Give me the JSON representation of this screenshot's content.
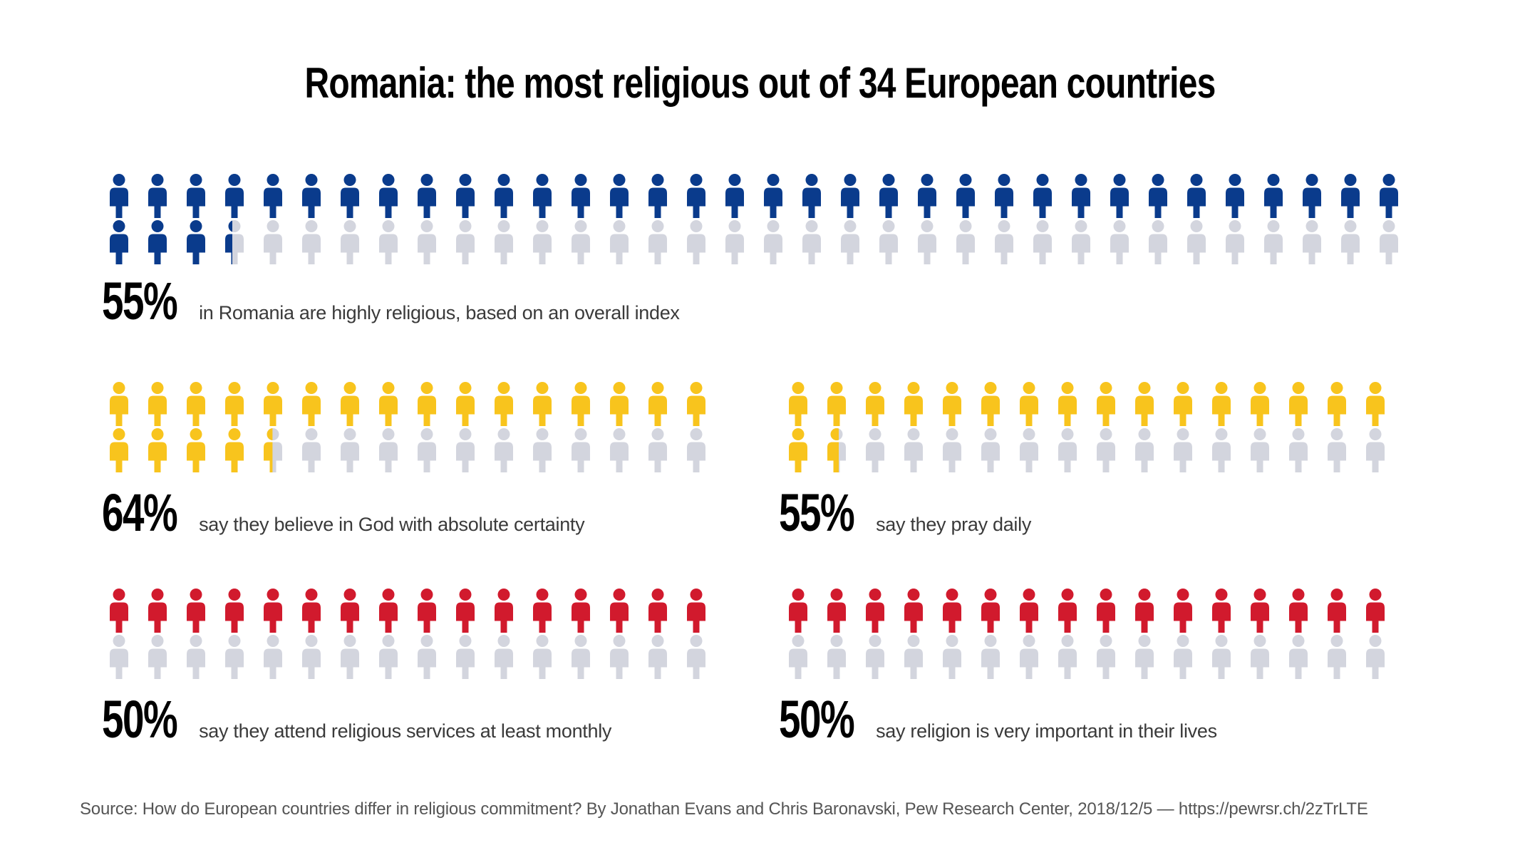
{
  "title": "Romania: the most religious out of 34 European countries",
  "colors": {
    "blue": "#0a3b8c",
    "yellow": "#f8c41d",
    "red": "#d11a2d",
    "empty_gray": "#d3d5de",
    "background": "#ffffff",
    "title_text": "#000000",
    "description_text": "#3a3a3a",
    "source_text": "#555555"
  },
  "chart_data": [
    {
      "type": "pictogram",
      "id": "highly-religious",
      "icon": "person-icon",
      "value_percent": 55,
      "value_label": "55%",
      "description": "in Romania are highly religious, based on an overall index",
      "fill_color": "#0a3b8c",
      "empty_color": "#d3d5de",
      "icons_per_row": 34,
      "rows": 2,
      "total_icons": 68,
      "filled_icons": 37.4
    },
    {
      "type": "pictogram",
      "id": "believe-in-god",
      "icon": "person-icon",
      "value_percent": 64,
      "value_label": "64%",
      "description": "say they believe in God with absolute certainty",
      "fill_color": "#f8c41d",
      "empty_color": "#d3d5de",
      "icons_per_row": 16,
      "rows": 2,
      "total_icons": 32,
      "filled_icons": 20.48
    },
    {
      "type": "pictogram",
      "id": "pray-daily",
      "icon": "person-icon",
      "value_percent": 55,
      "value_label": "55%",
      "description": "say they pray daily",
      "fill_color": "#f8c41d",
      "empty_color": "#d3d5de",
      "icons_per_row": 16,
      "rows": 2,
      "total_icons": 32,
      "filled_icons": 17.6
    },
    {
      "type": "pictogram",
      "id": "attend-services",
      "icon": "person-icon",
      "value_percent": 50,
      "value_label": "50%",
      "description": "say they attend religious services at least monthly",
      "fill_color": "#d11a2d",
      "empty_color": "#d3d5de",
      "icons_per_row": 16,
      "rows": 2,
      "total_icons": 32,
      "filled_icons": 16
    },
    {
      "type": "pictogram",
      "id": "religion-important",
      "icon": "person-icon",
      "value_percent": 50,
      "value_label": "50%",
      "description": "say religion is very important in their lives",
      "fill_color": "#d11a2d",
      "empty_color": "#d3d5de",
      "icons_per_row": 16,
      "rows": 2,
      "total_icons": 32,
      "filled_icons": 16
    }
  ],
  "source": {
    "prefix": "Source: How do European countries differ in religious commitment? By Jonathan Evans and Chris Baronavski, Pew Research Center, 2018/12/5 — ",
    "url": "https://pewrsr.ch/2zTrLTE"
  }
}
